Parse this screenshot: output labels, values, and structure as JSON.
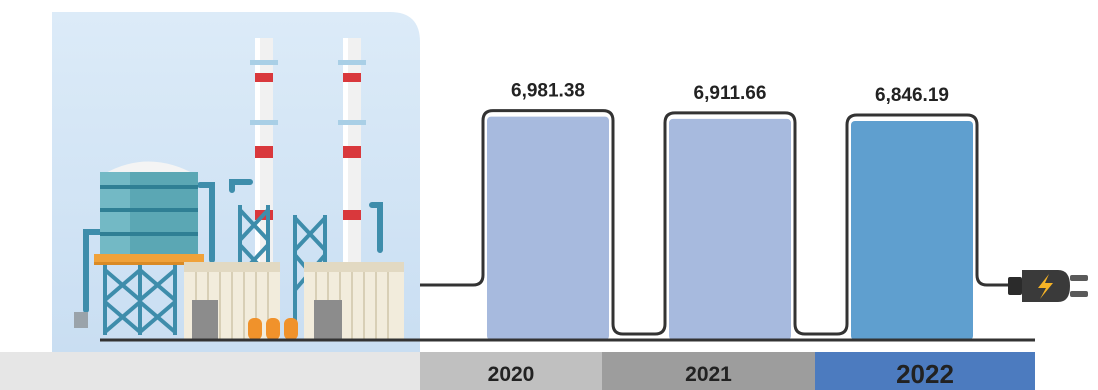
{
  "chart_data": {
    "type": "bar",
    "categories": [
      "2020",
      "2021",
      "2022"
    ],
    "values": [
      6981.38,
      6911.66,
      6846.19
    ],
    "value_labels": [
      "6,981.38",
      "6,911.66",
      "6,846.19"
    ],
    "highlight_category": "2022",
    "ylim": [
      0,
      7000
    ],
    "grid": false,
    "colors": {
      "bar": "#a7bade",
      "bar_highlight": "#5f9fcf",
      "outline": "#333333",
      "axis": "#333333",
      "year_band": [
        "#c0c0c0",
        "#9d9d9d",
        "#4c7bbf"
      ],
      "year_band_left": "#e6e6e6",
      "illustration_bg": "#d6e8f6"
    }
  },
  "decor": {
    "illustration": "power-plant-illustration",
    "plug": "power-plug-icon"
  }
}
